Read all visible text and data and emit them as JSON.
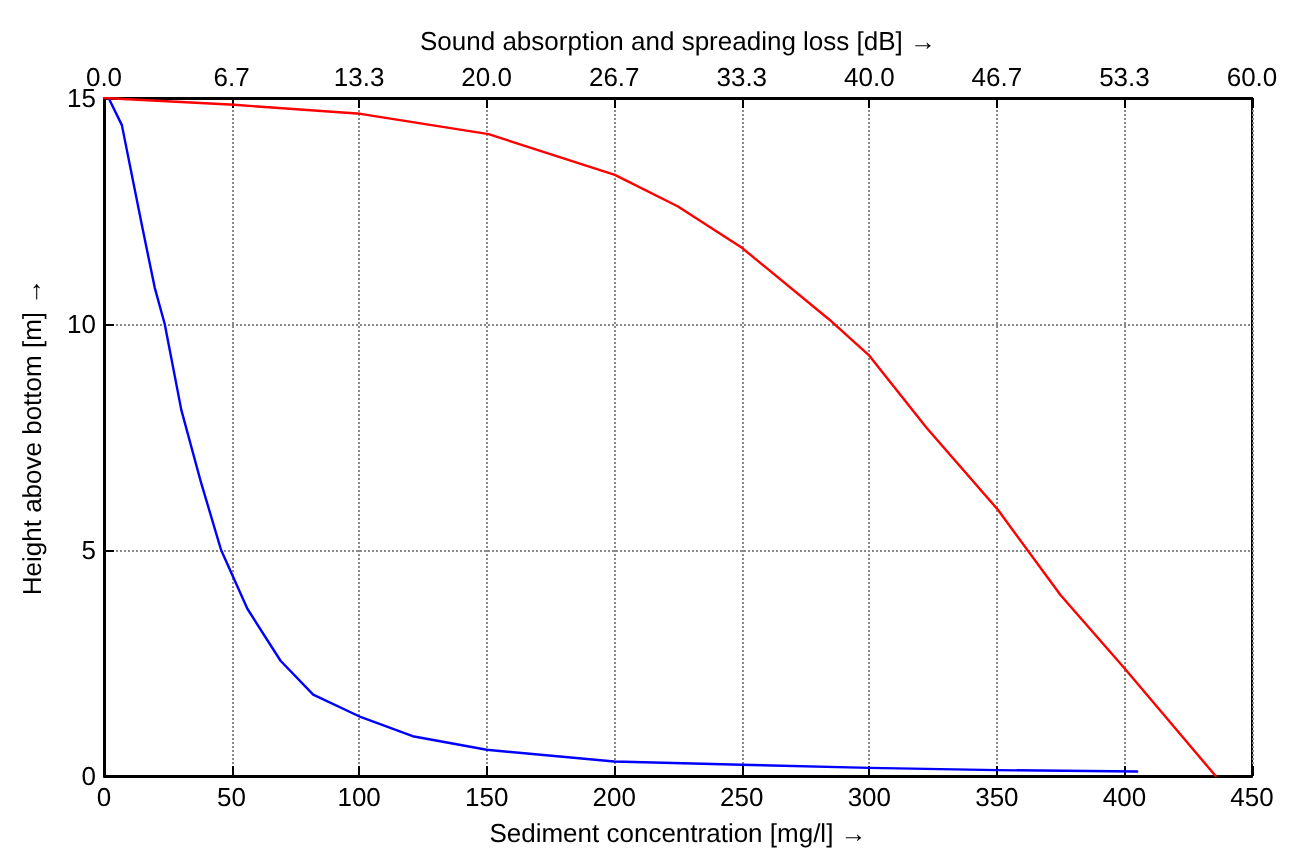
{
  "chart_data": {
    "type": "line",
    "xlabel": "Sediment concentration [mg/l] →",
    "ylabel": "Height above bottom [m] →",
    "x2label": "Sound absorption and spreading loss [dB] →",
    "xlim": [
      0,
      450
    ],
    "xticks": [
      0,
      50,
      100,
      150,
      200,
      250,
      300,
      350,
      400,
      450
    ],
    "x2lim": [
      0,
      60
    ],
    "x2ticks": [
      {
        "value": 0,
        "label": "0.0"
      },
      {
        "value": 6.667,
        "label": "6.7"
      },
      {
        "value": 13.333,
        "label": "13.3"
      },
      {
        "value": 20,
        "label": "20.0"
      },
      {
        "value": 26.667,
        "label": "26.7"
      },
      {
        "value": 33.333,
        "label": "33.3"
      },
      {
        "value": 40,
        "label": "40.0"
      },
      {
        "value": 46.667,
        "label": "46.7"
      },
      {
        "value": 53.333,
        "label": "53.3"
      },
      {
        "value": 60,
        "label": "60.0"
      }
    ],
    "ylim": [
      0,
      15
    ],
    "yticks": [
      0,
      5,
      10,
      15
    ],
    "grid": true,
    "line_style": "solid",
    "marker": "none",
    "series": [
      {
        "color": "#0000ff",
        "x": [
          1.8,
          7,
          14.8,
          19.9,
          23.8,
          30.3,
          38,
          45.9,
          56.2,
          69.2,
          82,
          100.8,
          121,
          150,
          200,
          250,
          300,
          350,
          405
        ],
        "values": [
          15,
          14.4,
          12.2,
          10.8,
          10,
          8.1,
          6.5,
          5,
          3.7,
          2.55,
          1.8,
          1.3,
          0.88,
          0.58,
          0.32,
          0.25,
          0.18,
          0.13,
          0.1
        ]
      },
      {
        "color": "#ff0000",
        "axis": "x2",
        "x": [
          0,
          6.8,
          13.4,
          20.1,
          26.7,
          30,
          33.3,
          37.9,
          40,
          43,
          46.7,
          50,
          53.3,
          55.9,
          58.1
        ],
        "values": [
          15,
          14.85,
          14.65,
          14.2,
          13.3,
          12.6,
          11.7,
          10.1,
          9.3,
          7.7,
          5.9,
          4,
          2.4,
          1.1,
          0
        ]
      }
    ]
  }
}
